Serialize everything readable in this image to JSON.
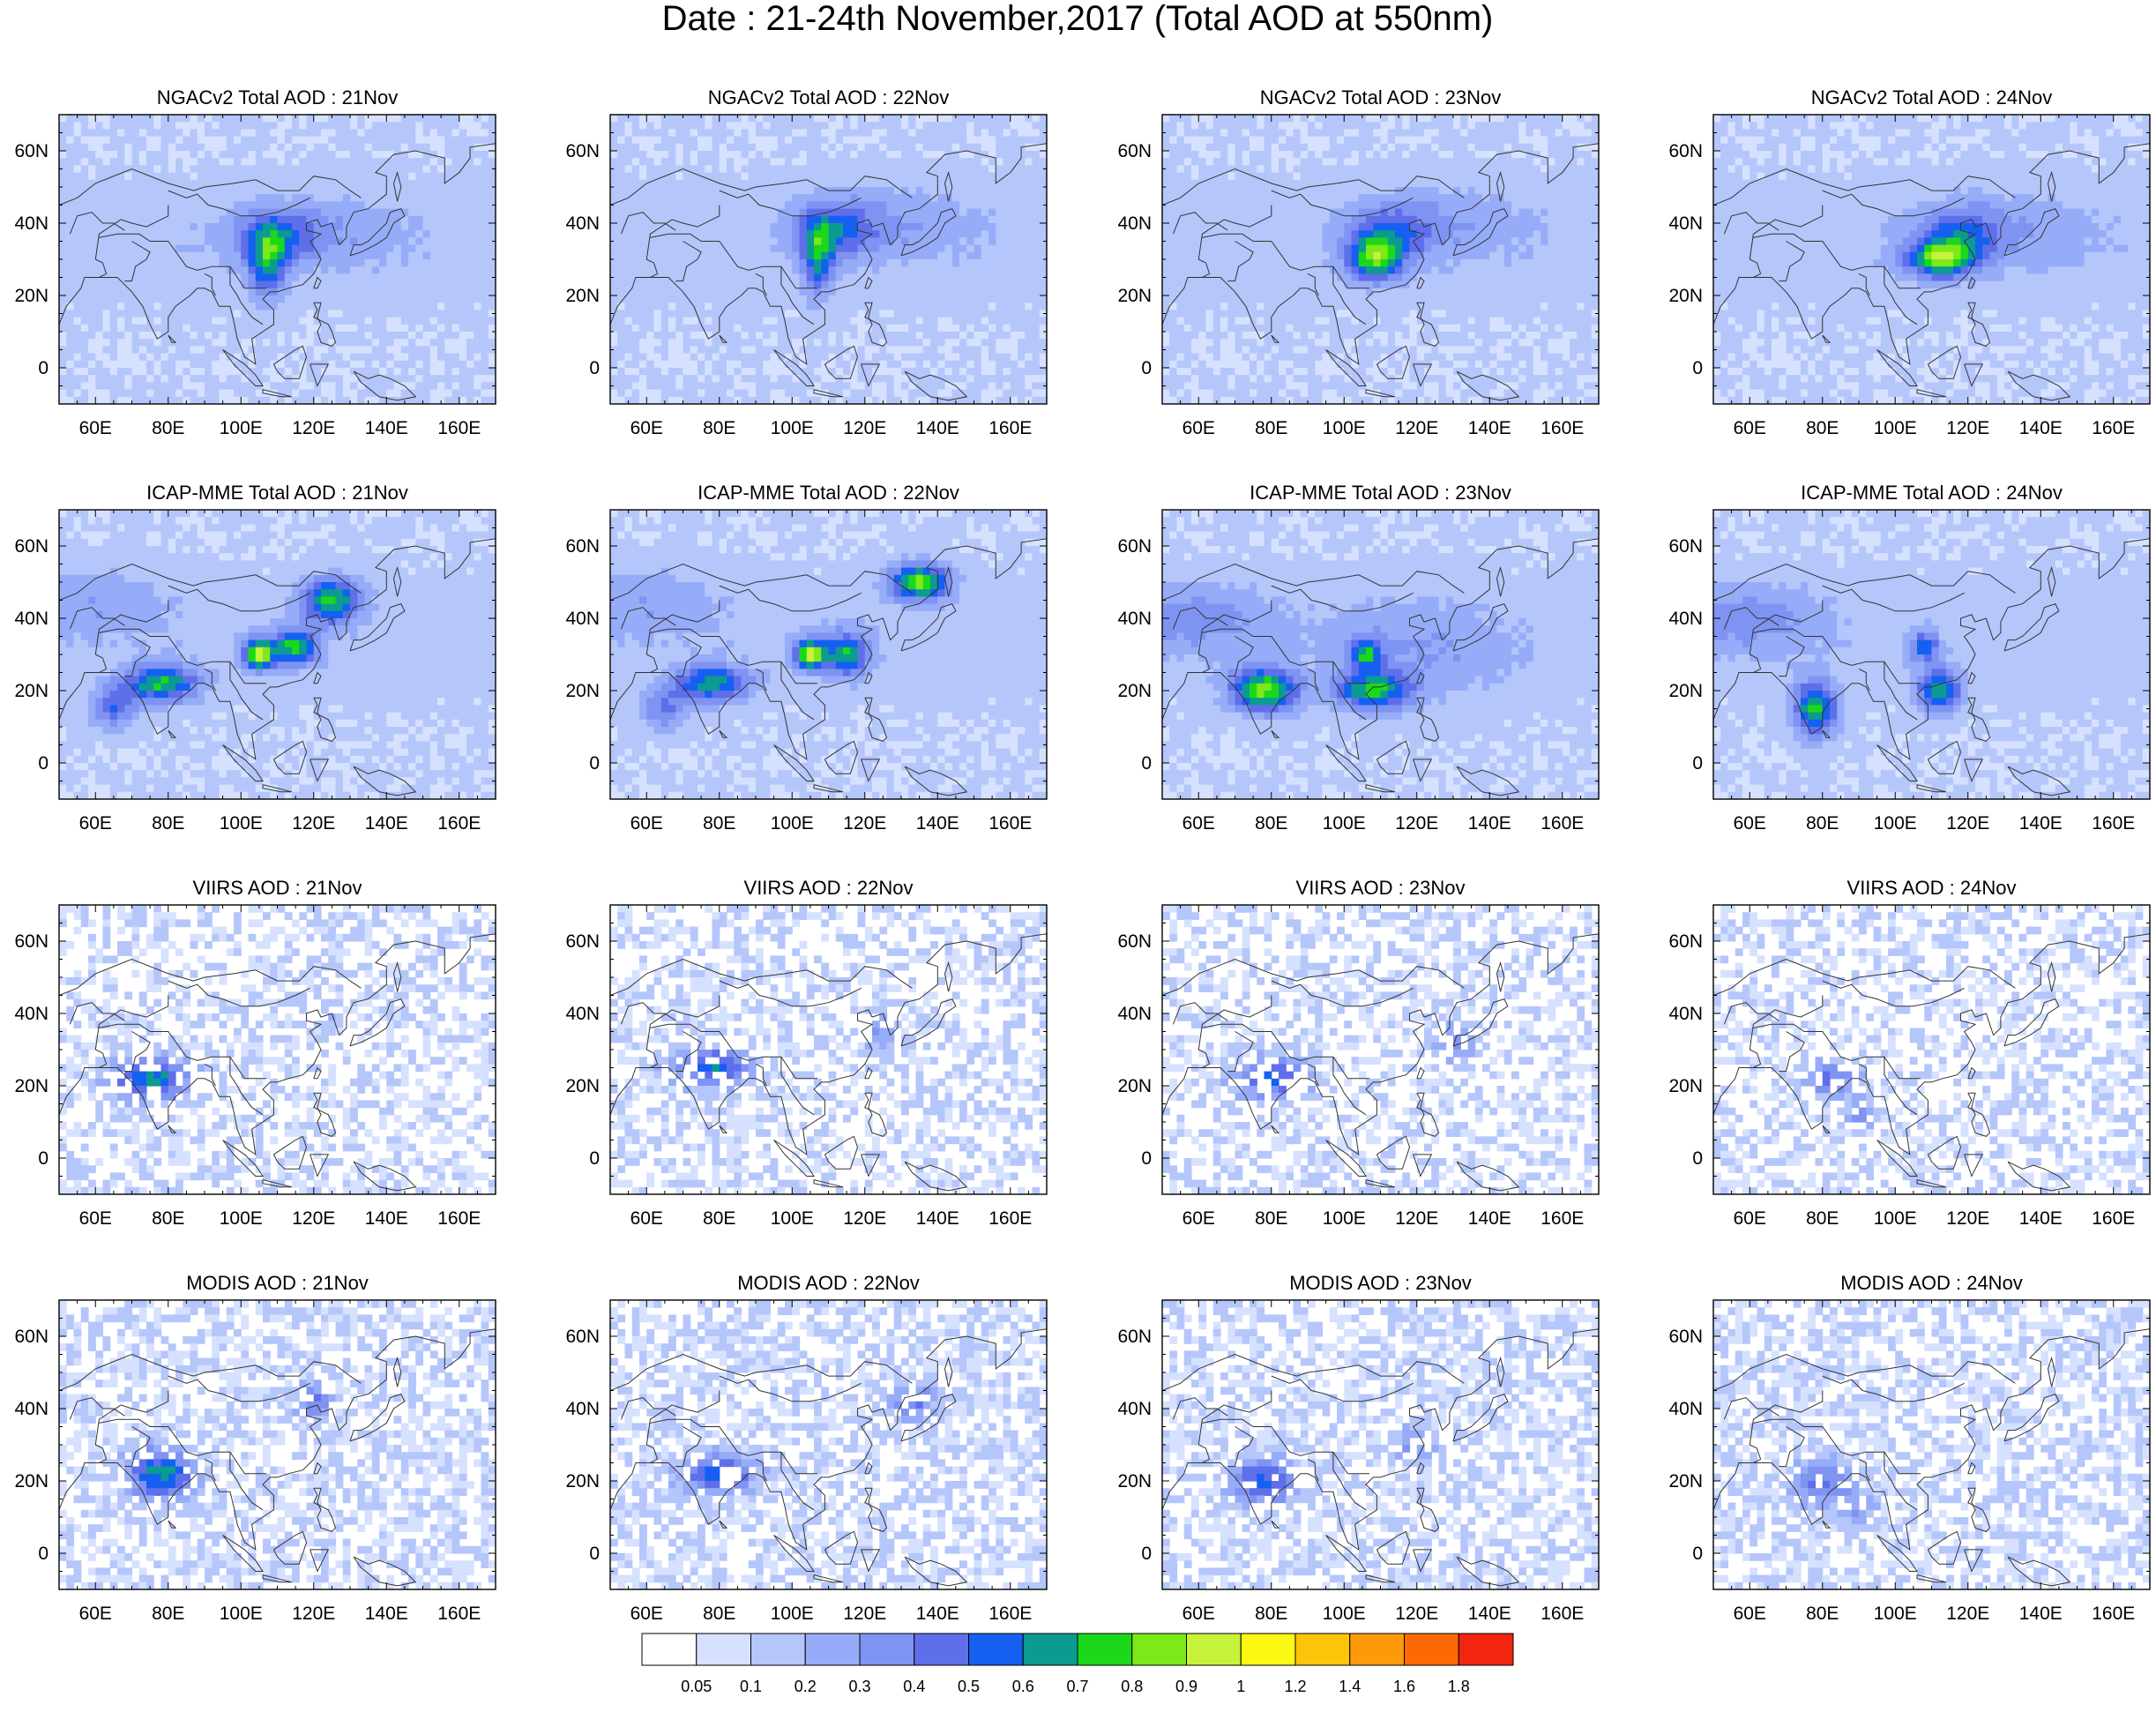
{
  "title": "Date : 21-24th November,2017 (Total AOD at 550nm)",
  "map": {
    "lon_range": [
      50,
      170
    ],
    "lat_range": [
      -10,
      70
    ],
    "lon_ticks": [
      "60E",
      "80E",
      "100E",
      "120E",
      "140E",
      "160E"
    ],
    "lat_ticks": [
      "60N",
      "40N",
      "20N",
      "0"
    ]
  },
  "panels": [
    {
      "title": "NGACv2 Total AOD : 21Nov",
      "source": "NGACv2",
      "day": "21Nov"
    },
    {
      "title": "NGACv2 Total AOD : 22Nov",
      "source": "NGACv2",
      "day": "22Nov"
    },
    {
      "title": "NGACv2 Total AOD : 23Nov",
      "source": "NGACv2",
      "day": "23Nov"
    },
    {
      "title": "NGACv2 Total AOD : 24Nov",
      "source": "NGACv2",
      "day": "24Nov"
    },
    {
      "title": "ICAP-MME Total AOD : 21Nov",
      "source": "ICAP-MME",
      "day": "21Nov"
    },
    {
      "title": "ICAP-MME Total AOD : 22Nov",
      "source": "ICAP-MME",
      "day": "22Nov"
    },
    {
      "title": "ICAP-MME Total AOD : 23Nov",
      "source": "ICAP-MME",
      "day": "23Nov"
    },
    {
      "title": "ICAP-MME Total AOD : 24Nov",
      "source": "ICAP-MME",
      "day": "24Nov"
    },
    {
      "title": "VIIRS AOD : 21Nov",
      "source": "VIIRS",
      "day": "21Nov"
    },
    {
      "title": "VIIRS AOD : 22Nov",
      "source": "VIIRS",
      "day": "22Nov"
    },
    {
      "title": "VIIRS AOD : 23Nov",
      "source": "VIIRS",
      "day": "23Nov"
    },
    {
      "title": "VIIRS AOD : 24Nov",
      "source": "VIIRS",
      "day": "24Nov"
    },
    {
      "title": "MODIS AOD : 21Nov",
      "source": "MODIS",
      "day": "21Nov"
    },
    {
      "title": "MODIS AOD : 22Nov",
      "source": "MODIS",
      "day": "22Nov"
    },
    {
      "title": "MODIS AOD : 23Nov",
      "source": "MODIS",
      "day": "23Nov"
    },
    {
      "title": "MODIS AOD : 24Nov",
      "source": "MODIS",
      "day": "24Nov"
    }
  ],
  "colorbar": {
    "labels": [
      "0.05",
      "0.1",
      "0.2",
      "0.3",
      "0.4",
      "0.5",
      "0.6",
      "0.7",
      "0.8",
      "0.9",
      "1",
      "1.2",
      "1.4",
      "1.6",
      "1.8"
    ],
    "colors": [
      "#ffffff",
      "#d6e1ff",
      "#b5c6fb",
      "#97acf8",
      "#7f93f2",
      "#5f6fea",
      "#1560f0",
      "#0b9b91",
      "#1bd81b",
      "#7de81a",
      "#c6f23a",
      "#fdf714",
      "#fdc50a",
      "#fd9a0a",
      "#fd6a05",
      "#f2250f"
    ]
  },
  "hotspots": [
    [
      [
        107,
        28,
        0.45,
        5,
        9
      ],
      [
        110,
        36,
        0.3,
        10,
        7
      ],
      [
        120,
        38,
        0.15,
        25,
        10
      ]
    ],
    [
      [
        107,
        30,
        0.45,
        4,
        10
      ],
      [
        112,
        38,
        0.3,
        10,
        8
      ],
      [
        125,
        40,
        0.15,
        25,
        10
      ]
    ],
    [
      [
        108,
        30,
        0.55,
        7,
        6
      ],
      [
        113,
        36,
        0.3,
        10,
        8
      ],
      [
        125,
        40,
        0.15,
        25,
        10
      ]
    ],
    [
      [
        112,
        30,
        0.6,
        9,
        5
      ],
      [
        118,
        36,
        0.3,
        10,
        8
      ],
      [
        130,
        38,
        0.15,
        25,
        10
      ]
    ],
    [
      [
        78,
        22,
        0.6,
        10,
        5
      ],
      [
        65,
        15,
        0.35,
        6,
        6
      ],
      [
        105,
        30,
        0.85,
        4,
        4
      ],
      [
        115,
        32,
        0.6,
        6,
        5
      ],
      [
        125,
        45,
        0.6,
        8,
        6
      ],
      [
        60,
        45,
        0.15,
        20,
        10
      ]
    ],
    [
      [
        78,
        22,
        0.55,
        10,
        5
      ],
      [
        65,
        15,
        0.3,
        6,
        6
      ],
      [
        105,
        30,
        0.8,
        4,
        4
      ],
      [
        115,
        30,
        0.55,
        6,
        6
      ],
      [
        135,
        50,
        0.7,
        8,
        5
      ],
      [
        60,
        45,
        0.15,
        20,
        10
      ]
    ],
    [
      [
        78,
        20,
        0.7,
        9,
        6
      ],
      [
        108,
        20,
        0.55,
        10,
        5
      ],
      [
        106,
        30,
        0.5,
        4,
        4
      ],
      [
        60,
        40,
        0.2,
        20,
        10
      ],
      [
        120,
        30,
        0.15,
        25,
        15
      ]
    ],
    [
      [
        78,
        15,
        0.6,
        6,
        8
      ],
      [
        112,
        20,
        0.55,
        6,
        6
      ],
      [
        108,
        32,
        0.4,
        4,
        4
      ],
      [
        60,
        40,
        0.2,
        20,
        10
      ]
    ],
    [
      [
        75,
        22,
        0.55,
        10,
        6
      ],
      [
        120,
        40,
        0.2,
        5,
        4
      ]
    ],
    [
      [
        78,
        25,
        0.5,
        10,
        5
      ],
      [
        125,
        35,
        0.2,
        5,
        6
      ]
    ],
    [
      [
        80,
        22,
        0.4,
        10,
        6
      ],
      [
        130,
        32,
        0.25,
        5,
        6
      ]
    ],
    [
      [
        82,
        22,
        0.35,
        8,
        5
      ],
      [
        90,
        12,
        0.25,
        4,
        4
      ]
    ],
    [
      [
        78,
        22,
        0.55,
        9,
        7
      ],
      [
        120,
        42,
        0.35,
        5,
        5
      ]
    ],
    [
      [
        80,
        22,
        0.5,
        10,
        5
      ],
      [
        133,
        42,
        0.3,
        8,
        5
      ]
    ],
    [
      [
        78,
        20,
        0.45,
        9,
        6
      ],
      [
        120,
        30,
        0.25,
        5,
        5
      ]
    ],
    [
      [
        80,
        20,
        0.35,
        8,
        6
      ],
      [
        90,
        12,
        0.2,
        5,
        5
      ]
    ]
  ],
  "coastlines": [
    [
      [
        50,
        12
      ],
      [
        52,
        17
      ],
      [
        56,
        22
      ],
      [
        57,
        25
      ],
      [
        60,
        25
      ],
      [
        66,
        25
      ],
      [
        68,
        23
      ],
      [
        70,
        21
      ],
      [
        73,
        17
      ],
      [
        75,
        12
      ],
      [
        77,
        8
      ],
      [
        80,
        10
      ],
      [
        80,
        14
      ],
      [
        82,
        17
      ],
      [
        86,
        20
      ],
      [
        88,
        22
      ],
      [
        90,
        22
      ],
      [
        92,
        21
      ],
      [
        94,
        17
      ],
      [
        97,
        17
      ],
      [
        98,
        13
      ],
      [
        99,
        8
      ],
      [
        101,
        3
      ],
      [
        104,
        1
      ],
      [
        103,
        8
      ],
      [
        106,
        10
      ],
      [
        109,
        12
      ],
      [
        109,
        16
      ],
      [
        106,
        19
      ],
      [
        108,
        21
      ],
      [
        110,
        21
      ],
      [
        113,
        22
      ],
      [
        117,
        23
      ],
      [
        120,
        26
      ],
      [
        122,
        30
      ],
      [
        121,
        32
      ],
      [
        119,
        35
      ],
      [
        122,
        37
      ],
      [
        118,
        38
      ],
      [
        118,
        40
      ],
      [
        121,
        41
      ],
      [
        122,
        39
      ],
      [
        125,
        40
      ],
      [
        126,
        37
      ],
      [
        127,
        34
      ],
      [
        129,
        36
      ],
      [
        129,
        39
      ],
      [
        131,
        43
      ],
      [
        135,
        44
      ],
      [
        140,
        48
      ],
      [
        140,
        53
      ],
      [
        137,
        54
      ],
      [
        142,
        59
      ],
      [
        148,
        60
      ],
      [
        152,
        59
      ],
      [
        156,
        58
      ],
      [
        156,
        51
      ],
      [
        160,
        54
      ],
      [
        163,
        58
      ],
      [
        163,
        61
      ],
      [
        170,
        62
      ]
    ],
    [
      [
        130,
        31
      ],
      [
        131,
        34
      ],
      [
        133,
        34
      ],
      [
        135,
        35
      ],
      [
        137,
        37
      ],
      [
        140,
        40
      ],
      [
        141,
        43
      ],
      [
        144,
        44
      ],
      [
        145,
        42
      ],
      [
        142,
        40
      ],
      [
        140,
        36
      ],
      [
        137,
        34
      ],
      [
        133,
        32
      ],
      [
        130,
        31
      ]
    ],
    [
      [
        120,
        22
      ],
      [
        121,
        25
      ],
      [
        122,
        24
      ],
      [
        121,
        22
      ],
      [
        120,
        22
      ]
    ],
    [
      [
        143,
        46
      ],
      [
        142,
        51
      ],
      [
        143,
        54
      ],
      [
        144,
        50
      ],
      [
        143,
        46
      ]
    ],
    [
      [
        120,
        18
      ],
      [
        121,
        16
      ],
      [
        120,
        14
      ],
      [
        122,
        13
      ],
      [
        124,
        12
      ],
      [
        125,
        10
      ],
      [
        126,
        7
      ],
      [
        125,
        6
      ],
      [
        122,
        7
      ],
      [
        121,
        10
      ],
      [
        122,
        12
      ],
      [
        121,
        14
      ],
      [
        122,
        18
      ],
      [
        120,
        18
      ]
    ],
    [
      [
        95,
        5
      ],
      [
        98,
        3
      ],
      [
        101,
        1
      ],
      [
        104,
        -2
      ],
      [
        106,
        -5
      ],
      [
        104,
        -5
      ],
      [
        101,
        -2
      ],
      [
        98,
        1
      ],
      [
        95,
        5
      ]
    ],
    [
      [
        106,
        -6
      ],
      [
        110,
        -7
      ],
      [
        114,
        -8
      ],
      [
        111,
        -8
      ],
      [
        106,
        -7
      ],
      [
        106,
        -6
      ]
    ],
    [
      [
        109,
        1
      ],
      [
        110,
        -1
      ],
      [
        112,
        -3
      ],
      [
        116,
        -3
      ],
      [
        117,
        0
      ],
      [
        118,
        3
      ],
      [
        117,
        6
      ],
      [
        115,
        5
      ],
      [
        112,
        3
      ],
      [
        109,
        1
      ]
    ],
    [
      [
        119,
        1
      ],
      [
        120,
        -2
      ],
      [
        121,
        -5
      ],
      [
        122,
        -3
      ],
      [
        124,
        1
      ],
      [
        122,
        1
      ],
      [
        119,
        1
      ]
    ],
    [
      [
        131,
        -1
      ],
      [
        135,
        -3
      ],
      [
        138,
        -2
      ],
      [
        141,
        -3
      ],
      [
        145,
        -5
      ],
      [
        148,
        -8
      ],
      [
        143,
        -9
      ],
      [
        138,
        -8
      ],
      [
        133,
        -4
      ],
      [
        131,
        -1
      ]
    ],
    [
      [
        80,
        9
      ],
      [
        81,
        7
      ],
      [
        82,
        7
      ],
      [
        80,
        9
      ]
    ],
    [
      [
        50,
        45
      ],
      [
        55,
        47
      ],
      [
        60,
        51
      ],
      [
        70,
        55
      ],
      [
        80,
        51
      ],
      [
        87,
        49
      ],
      [
        90,
        50
      ],
      [
        98,
        51
      ],
      [
        104,
        52
      ],
      [
        110,
        49
      ],
      [
        116,
        49
      ],
      [
        120,
        53
      ],
      [
        126,
        52
      ],
      [
        130,
        49
      ],
      [
        133,
        47
      ]
    ],
    [
      [
        80,
        49
      ],
      [
        85,
        47
      ],
      [
        88,
        48
      ],
      [
        91,
        45
      ],
      [
        95,
        44
      ],
      [
        100,
        42
      ],
      [
        105,
        42
      ],
      [
        110,
        43
      ],
      [
        115,
        45
      ],
      [
        119,
        47
      ]
    ],
    [
      [
        61,
        36
      ],
      [
        66,
        37
      ],
      [
        72,
        37
      ],
      [
        75,
        35
      ],
      [
        80,
        35
      ],
      [
        85,
        28
      ],
      [
        88,
        27
      ],
      [
        92,
        28
      ],
      [
        97,
        28
      ],
      [
        99,
        25
      ],
      [
        101,
        22
      ],
      [
        104,
        22
      ],
      [
        107,
        22
      ]
    ],
    [
      [
        60,
        30
      ],
      [
        61,
        37
      ],
      [
        67,
        41
      ],
      [
        70,
        40
      ],
      [
        74,
        39
      ],
      [
        80,
        42
      ],
      [
        80,
        45
      ]
    ],
    [
      [
        53,
        37
      ],
      [
        55,
        42
      ],
      [
        59,
        43
      ],
      [
        60,
        42
      ],
      [
        62,
        40
      ],
      [
        65,
        40
      ],
      [
        68,
        38
      ]
    ],
    [
      [
        70,
        35
      ],
      [
        75,
        32
      ],
      [
        74,
        30
      ],
      [
        71,
        28
      ],
      [
        70,
        24
      ],
      [
        68,
        24
      ]
    ],
    [
      [
        97,
        28
      ],
      [
        97,
        23
      ],
      [
        99,
        20
      ],
      [
        100,
        18
      ],
      [
        103,
        14
      ],
      [
        106,
        12
      ]
    ],
    [
      [
        90,
        26
      ],
      [
        92,
        25
      ],
      [
        92,
        22
      ],
      [
        93,
        20
      ]
    ],
    [
      [
        60,
        30
      ],
      [
        62,
        29
      ],
      [
        63,
        26
      ],
      [
        61,
        25
      ]
    ]
  ]
}
